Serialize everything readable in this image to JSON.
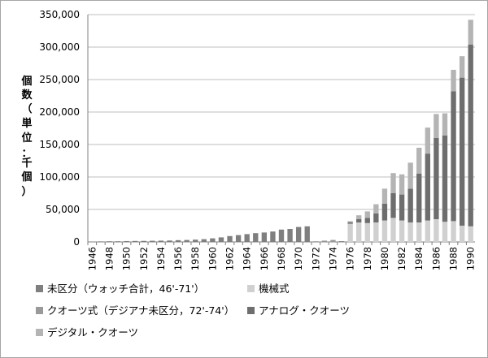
{
  "chart_data": {
    "type": "bar",
    "stacked": true,
    "ylabel_chars": [
      "個",
      "数",
      "（",
      "単",
      "位",
      "：",
      "千",
      "個",
      "）"
    ],
    "ylim": [
      0,
      350000
    ],
    "yticks": [
      "0",
      "50,000",
      "100,000",
      "150,000",
      "200,000",
      "250,000",
      "300,000",
      "350,000"
    ],
    "grid": true,
    "legend_position": "bottom",
    "categories": [
      "1946",
      "1947",
      "1948",
      "1949",
      "1950",
      "1951",
      "1952",
      "1953",
      "1954",
      "1955",
      "1956",
      "1957",
      "1958",
      "1959",
      "1960",
      "1961",
      "1962",
      "1963",
      "1964",
      "1965",
      "1966",
      "1967",
      "1968",
      "1969",
      "1970",
      "1971",
      "1972",
      "1973",
      "1974",
      "1975",
      "1976",
      "1977",
      "1978",
      "1979",
      "1980",
      "1981",
      "1982",
      "1983",
      "1984",
      "1985",
      "1986",
      "1987",
      "1988",
      "1989",
      "1990"
    ],
    "xtick_labels": [
      "1946",
      "1948",
      "1950",
      "1952",
      "1954",
      "1956",
      "1958",
      "1960",
      "1962",
      "1964",
      "1966",
      "1968",
      "1970",
      "1972",
      "1974",
      "1976",
      "1978",
      "1980",
      "1982",
      "1984",
      "1986",
      "1988",
      "1990"
    ],
    "series": [
      {
        "name": "未区分（ウォッチ合計，46'-71'）",
        "color": "#7f7f7f",
        "values": [
          500,
          800,
          1000,
          1000,
          1300,
          1500,
          1600,
          1800,
          2000,
          2200,
          2700,
          3000,
          3500,
          4200,
          5500,
          7000,
          9000,
          10500,
          12000,
          13500,
          14500,
          16000,
          19000,
          20000,
          23000,
          24000,
          0,
          0,
          0,
          0,
          0,
          0,
          0,
          0,
          0,
          0,
          0,
          0,
          0,
          0,
          0,
          0,
          0,
          0,
          0
        ]
      },
      {
        "name": "機械式",
        "color": "#d0d0d0",
        "values": [
          0,
          0,
          0,
          0,
          0,
          0,
          0,
          0,
          0,
          0,
          0,
          0,
          0,
          0,
          0,
          0,
          0,
          0,
          0,
          0,
          0,
          0,
          0,
          0,
          0,
          0,
          0,
          0,
          0,
          0,
          28000,
          30000,
          29000,
          30000,
          33000,
          37000,
          33000,
          30000,
          30000,
          33000,
          35000,
          31000,
          32000,
          25000,
          24000
        ]
      },
      {
        "name": "クオーツ式（デジアナ未区分，72'-74'）",
        "color": "#9a9a9a",
        "values": [
          0,
          0,
          0,
          0,
          0,
          0,
          0,
          0,
          0,
          0,
          0,
          0,
          0,
          0,
          0,
          0,
          0,
          0,
          0,
          0,
          0,
          0,
          0,
          0,
          0,
          0,
          1000,
          2000,
          3000,
          0,
          0,
          0,
          0,
          0,
          0,
          0,
          0,
          0,
          0,
          0,
          0,
          0,
          0,
          0,
          0
        ]
      },
      {
        "name": "アナログ・クオーツ",
        "color": "#6e6e6e",
        "values": [
          0,
          0,
          0,
          0,
          0,
          0,
          0,
          0,
          0,
          0,
          0,
          0,
          0,
          0,
          0,
          0,
          0,
          0,
          0,
          0,
          0,
          0,
          0,
          0,
          0,
          0,
          0,
          0,
          0,
          1000,
          2000,
          5000,
          8000,
          14000,
          26000,
          38000,
          40000,
          52000,
          75000,
          103000,
          125000,
          133000,
          200000,
          228000,
          280000
        ]
      },
      {
        "name": "デジタル・クオーツ",
        "color": "#b4b4b4",
        "values": [
          0,
          0,
          0,
          0,
          0,
          0,
          0,
          0,
          0,
          0,
          0,
          0,
          0,
          0,
          0,
          0,
          0,
          0,
          0,
          0,
          0,
          0,
          0,
          0,
          0,
          0,
          0,
          0,
          0,
          0,
          2000,
          6000,
          10000,
          14000,
          23000,
          31000,
          31000,
          40000,
          40000,
          40000,
          37000,
          34000,
          33000,
          33000,
          38000
        ]
      }
    ]
  }
}
